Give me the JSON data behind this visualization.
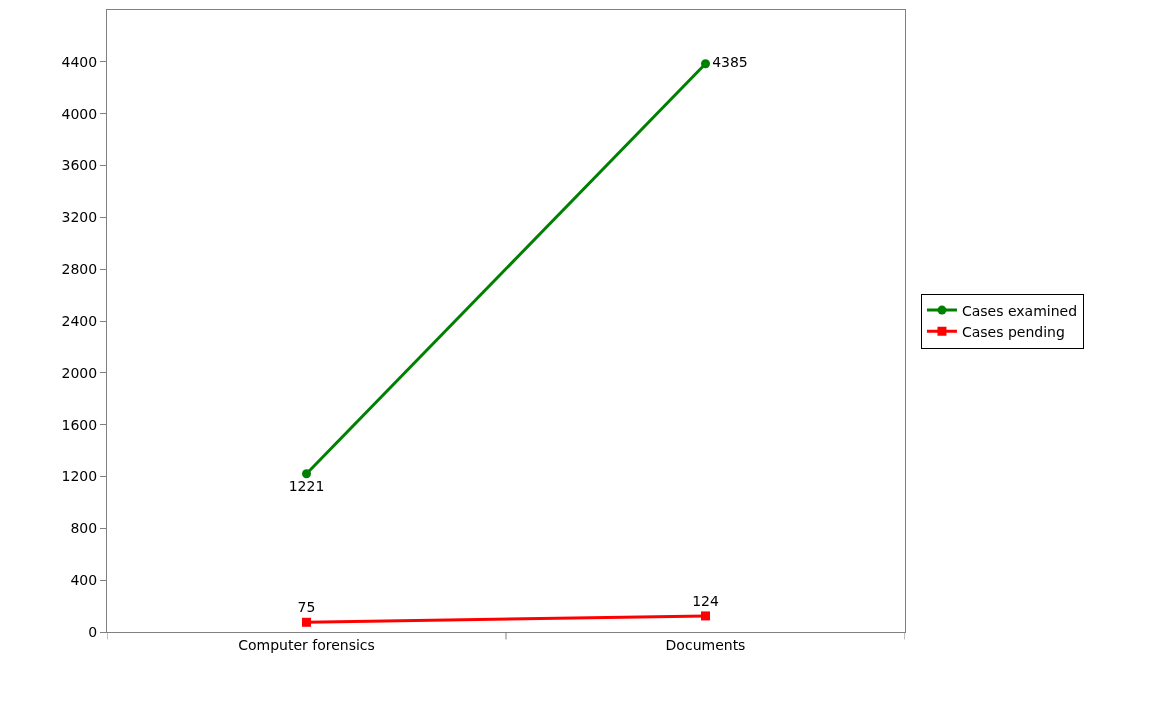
{
  "chart_data": {
    "type": "line",
    "categories": [
      "Computer forensics",
      "Documents"
    ],
    "series": [
      {
        "name": "Cases examined",
        "color": "#008000",
        "marker": "circle",
        "values": [
          1221,
          4385
        ]
      },
      {
        "name": "Cases pending",
        "color": "#ff0000",
        "marker": "square",
        "values": [
          75,
          124
        ]
      }
    ],
    "ylim": [
      0,
      4800
    ],
    "yticks": [
      0,
      400,
      800,
      1200,
      1600,
      2000,
      2400,
      2800,
      3200,
      3600,
      4000,
      4400
    ],
    "data_labels": true,
    "grid": false,
    "legend": "right"
  }
}
